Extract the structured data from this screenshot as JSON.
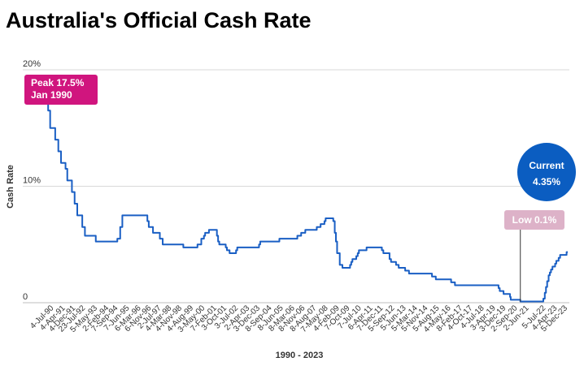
{
  "title": "Australia's Official Cash Rate",
  "colors": {
    "line": "#1a5fc4",
    "grid": "#d9d9d9",
    "peak_callout": "#d0157e",
    "low_callout": "#ddb2c8",
    "current_callout": "#0b5dc1"
  },
  "annotations": {
    "peak": [
      "Peak 17.5%",
      "Jan 1990"
    ],
    "low": "Low 0.1%",
    "current": [
      "Current",
      "4.35%"
    ]
  },
  "chart_data": {
    "type": "line",
    "title": "Australia's Official Cash Rate",
    "xlabel": "1990 - 2023",
    "ylabel": "Cash Rate",
    "ylim": [
      0,
      20
    ],
    "xlim": [
      "1990-01-23",
      "2023-12-05"
    ],
    "grid": true,
    "y_ticks": [
      {
        "value": 20,
        "label": "20%"
      },
      {
        "value": 10,
        "label": "10%"
      },
      {
        "value": 0,
        "label": "0"
      }
    ],
    "x_ticks": [
      {
        "date": "1990-07-04",
        "label": "4-Jul-90"
      },
      {
        "date": "1991-04-04",
        "label": "4-Apr-91"
      },
      {
        "date": "1991-12-04",
        "label": "4-Dec-91"
      },
      {
        "date": "1992-07-23",
        "label": "23-Jul-92"
      },
      {
        "date": "1993-05-05",
        "label": "5-May-93"
      },
      {
        "date": "1994-02-02",
        "label": "2-Feb-94"
      },
      {
        "date": "1994-09-07",
        "label": "7-Sep-94"
      },
      {
        "date": "1995-06-07",
        "label": "7-Jun-95"
      },
      {
        "date": "1996-03-06",
        "label": "6-Mar-96"
      },
      {
        "date": "1996-11-06",
        "label": "6-Nov-96"
      },
      {
        "date": "1997-07-02",
        "label": "2-Jul-97"
      },
      {
        "date": "1998-03-04",
        "label": "4-Mar-98"
      },
      {
        "date": "1998-11-04",
        "label": "4-Nov-98"
      },
      {
        "date": "1999-08-04",
        "label": "4-Aug-99"
      },
      {
        "date": "2000-05-03",
        "label": "3-May-00"
      },
      {
        "date": "2001-02-07",
        "label": "7-Feb-01"
      },
      {
        "date": "2001-10-03",
        "label": "3-Oct-01"
      },
      {
        "date": "2002-07-03",
        "label": "3-Jul-02"
      },
      {
        "date": "2003-04-02",
        "label": "2-Apr-03"
      },
      {
        "date": "2003-12-03",
        "label": "3-Dec-03"
      },
      {
        "date": "2004-09-08",
        "label": "8-Sep-04"
      },
      {
        "date": "2005-06-08",
        "label": "8-Jun-05"
      },
      {
        "date": "2006-03-08",
        "label": "8-Mar-06"
      },
      {
        "date": "2006-11-08",
        "label": "8-Nov-06"
      },
      {
        "date": "2007-08-08",
        "label": "8-Aug-07"
      },
      {
        "date": "2008-05-07",
        "label": "7-May-08"
      },
      {
        "date": "2009-02-04",
        "label": "4-Feb-09"
      },
      {
        "date": "2009-10-07",
        "label": "7-Oct-09"
      },
      {
        "date": "2010-07-07",
        "label": "7-Jul-10"
      },
      {
        "date": "2011-04-06",
        "label": "6-Apr-11"
      },
      {
        "date": "2011-12-07",
        "label": "7-Dec-11"
      },
      {
        "date": "2012-09-05",
        "label": "5-Sep-12"
      },
      {
        "date": "2013-06-05",
        "label": "5-Jun-13"
      },
      {
        "date": "2014-03-05",
        "label": "5-Mar-14"
      },
      {
        "date": "2014-11-05",
        "label": "5-Nov-14"
      },
      {
        "date": "2015-08-05",
        "label": "5-Aug-15"
      },
      {
        "date": "2016-05-04",
        "label": "4-May-16"
      },
      {
        "date": "2017-02-08",
        "label": "8-Feb-17"
      },
      {
        "date": "2017-10-04",
        "label": "4-Oct-17"
      },
      {
        "date": "2018-07-04",
        "label": "4-Jul-18"
      },
      {
        "date": "2019-04-03",
        "label": "3-Apr-19"
      },
      {
        "date": "2019-12-03",
        "label": "3-Dec-19"
      },
      {
        "date": "2020-09-02",
        "label": "2-Sep-20"
      },
      {
        "date": "2021-06-02",
        "label": "2-Jun-21"
      },
      {
        "date": "2022-07-05",
        "label": "5-Jul-22"
      },
      {
        "date": "2023-04-04",
        "label": "4-Apr-23"
      },
      {
        "date": "2023-12-05",
        "label": "5-Dec-23"
      }
    ],
    "series": [
      {
        "points": [
          [
            "1990-01-23",
            17.5
          ],
          [
            "1990-02-15",
            16.5
          ],
          [
            "1990-04-04",
            15.0
          ],
          [
            "1990-08-02",
            14.0
          ],
          [
            "1990-10-15",
            13.0
          ],
          [
            "1990-12-18",
            12.0
          ],
          [
            "1991-04-04",
            11.5
          ],
          [
            "1991-05-16",
            10.5
          ],
          [
            "1991-09-03",
            9.5
          ],
          [
            "1991-11-06",
            8.5
          ],
          [
            "1992-01-08",
            7.5
          ],
          [
            "1992-05-06",
            6.5
          ],
          [
            "1992-07-08",
            5.75
          ],
          [
            "1993-03-23",
            5.25
          ],
          [
            "1994-08-17",
            5.5
          ],
          [
            "1994-10-24",
            6.5
          ],
          [
            "1994-12-14",
            7.5
          ],
          [
            "1996-07-31",
            7.0
          ],
          [
            "1996-09-02",
            6.5
          ],
          [
            "1996-12-11",
            6.0
          ],
          [
            "1997-05-23",
            5.5
          ],
          [
            "1997-07-30",
            5.0
          ],
          [
            "1998-12-02",
            4.75
          ],
          [
            "1999-11-03",
            5.0
          ],
          [
            "2000-02-02",
            5.5
          ],
          [
            "2000-04-05",
            5.75
          ],
          [
            "2000-05-03",
            6.0
          ],
          [
            "2000-08-02",
            6.25
          ],
          [
            "2001-02-07",
            5.75
          ],
          [
            "2001-03-07",
            5.25
          ],
          [
            "2001-04-04",
            5.0
          ],
          [
            "2001-09-05",
            4.75
          ],
          [
            "2001-10-03",
            4.5
          ],
          [
            "2001-12-05",
            4.25
          ],
          [
            "2002-05-08",
            4.5
          ],
          [
            "2002-06-05",
            4.75
          ],
          [
            "2003-11-05",
            5.0
          ],
          [
            "2003-12-03",
            5.25
          ],
          [
            "2005-03-02",
            5.5
          ],
          [
            "2006-05-03",
            5.75
          ],
          [
            "2006-08-02",
            6.0
          ],
          [
            "2006-11-08",
            6.25
          ],
          [
            "2007-08-08",
            6.5
          ],
          [
            "2007-11-07",
            6.75
          ],
          [
            "2008-02-06",
            7.0
          ],
          [
            "2008-03-05",
            7.25
          ],
          [
            "2008-09-03",
            7.0
          ],
          [
            "2008-10-08",
            6.0
          ],
          [
            "2008-11-05",
            5.25
          ],
          [
            "2008-12-03",
            4.25
          ],
          [
            "2009-02-04",
            3.25
          ],
          [
            "2009-04-08",
            3.0
          ],
          [
            "2009-10-07",
            3.25
          ],
          [
            "2009-11-04",
            3.5
          ],
          [
            "2009-12-02",
            3.75
          ],
          [
            "2010-03-03",
            4.0
          ],
          [
            "2010-04-07",
            4.25
          ],
          [
            "2010-05-05",
            4.5
          ],
          [
            "2010-11-03",
            4.75
          ],
          [
            "2011-11-02",
            4.5
          ],
          [
            "2011-12-07",
            4.25
          ],
          [
            "2012-05-02",
            3.75
          ],
          [
            "2012-06-06",
            3.5
          ],
          [
            "2012-10-03",
            3.25
          ],
          [
            "2012-12-05",
            3.0
          ],
          [
            "2013-05-08",
            2.75
          ],
          [
            "2013-08-07",
            2.5
          ],
          [
            "2015-02-04",
            2.25
          ],
          [
            "2015-05-06",
            2.0
          ],
          [
            "2016-05-04",
            1.75
          ],
          [
            "2016-08-03",
            1.5
          ],
          [
            "2019-06-05",
            1.25
          ],
          [
            "2019-07-03",
            1.0
          ],
          [
            "2019-10-02",
            0.75
          ],
          [
            "2020-03-04",
            0.5
          ],
          [
            "2020-03-20",
            0.25
          ],
          [
            "2020-11-04",
            0.1
          ],
          [
            "2022-05-04",
            0.35
          ],
          [
            "2022-06-08",
            0.85
          ],
          [
            "2022-07-06",
            1.35
          ],
          [
            "2022-08-03",
            1.85
          ],
          [
            "2022-09-07",
            2.35
          ],
          [
            "2022-10-05",
            2.6
          ],
          [
            "2022-11-02",
            2.85
          ],
          [
            "2022-12-07",
            3.1
          ],
          [
            "2023-02-08",
            3.35
          ],
          [
            "2023-03-08",
            3.6
          ],
          [
            "2023-05-03",
            3.85
          ],
          [
            "2023-06-07",
            4.1
          ],
          [
            "2023-11-08",
            4.35
          ],
          [
            "2023-12-05",
            4.35
          ]
        ]
      }
    ]
  }
}
